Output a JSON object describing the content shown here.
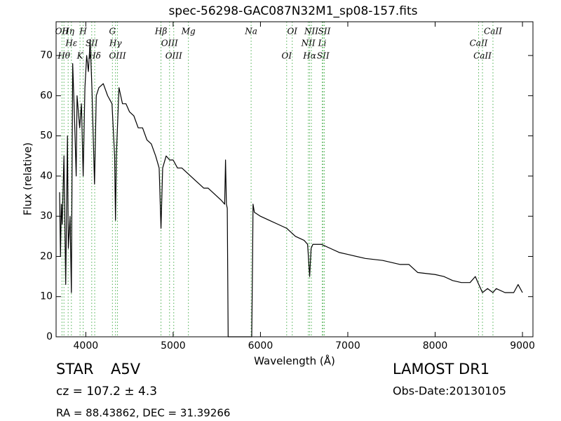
{
  "chart_data": {
    "type": "line",
    "title": "spec-56298-GAC087N32M1_sp08-157.fits",
    "x_label": "Wavelength (Å)",
    "y_label": "Flux (relative)",
    "xlim": [
      3660,
      9120
    ],
    "ylim": [
      0,
      78.4
    ],
    "xticks": [
      4000,
      5000,
      6000,
      7000,
      8000,
      9000
    ],
    "yticks": [
      0,
      10,
      20,
      30,
      40,
      50,
      60,
      70
    ],
    "color": "#000000",
    "line_color": "#4caf50",
    "x": [
      3700,
      3710,
      3720,
      3730,
      3750,
      3770,
      3790,
      3800,
      3820,
      3835,
      3850,
      3870,
      3890,
      3900,
      3930,
      3950,
      3970,
      3990,
      4010,
      4030,
      4050,
      4070,
      4100,
      4120,
      4150,
      4200,
      4250,
      4300,
      4330,
      4340,
      4350,
      4380,
      4420,
      4460,
      4500,
      4550,
      4600,
      4650,
      4700,
      4750,
      4800,
      4840,
      4861,
      4880,
      4920,
      4960,
      5000,
      5050,
      5100,
      5150,
      5200,
      5250,
      5300,
      5350,
      5400,
      5450,
      5500,
      5550,
      5590,
      5600,
      5610,
      5620,
      5630,
      5900,
      5910,
      5915,
      5930,
      6000,
      6100,
      6200,
      6300,
      6400,
      6500,
      6540,
      6563,
      6580,
      6600,
      6700,
      6800,
      6900,
      7000,
      7200,
      7400,
      7600,
      7700,
      7800,
      8000,
      8100,
      8200,
      8300,
      8400,
      8460,
      8500,
      8542,
      8600,
      8662,
      8700,
      8800,
      8900,
      8950,
      9000
    ],
    "values": [
      36,
      20,
      33,
      28,
      45,
      13,
      50,
      22,
      30,
      11,
      68,
      55,
      40,
      60,
      52,
      58,
      40,
      62,
      70,
      66,
      74,
      62,
      38,
      60,
      62,
      63,
      60,
      58,
      45,
      29,
      45,
      62,
      58,
      58,
      56,
      55,
      52,
      52,
      49,
      48,
      45,
      42,
      27,
      42,
      45,
      44,
      44,
      42,
      42,
      41,
      40,
      39,
      38,
      37,
      37,
      36,
      35,
      34,
      33,
      44,
      33,
      32,
      0,
      0,
      20,
      33,
      31,
      30,
      29,
      28,
      27,
      25,
      24,
      23,
      15,
      22,
      23,
      23,
      22,
      21,
      20.5,
      19.5,
      19,
      18,
      18,
      16,
      15.5,
      15,
      14,
      13.5,
      13.5,
      15,
      13,
      11,
      12,
      11,
      12,
      11,
      11,
      13,
      11
    ],
    "lines": [
      {
        "x": 3727,
        "label": "OII"
      },
      {
        "x": 3750,
        "label": "Hθ"
      },
      {
        "x": 3798,
        "label": "Hη"
      },
      {
        "x": 3835,
        "label": "Hε"
      },
      {
        "x": 3934,
        "label": "K"
      },
      {
        "x": 3970,
        "label": "H"
      },
      {
        "x": 4068,
        "label": "SII"
      },
      {
        "x": 4102,
        "label": "Hδ"
      },
      {
        "x": 4305,
        "label": "G"
      },
      {
        "x": 4340,
        "label": "Hγ"
      },
      {
        "x": 4363,
        "label": "OIII"
      },
      {
        "x": 4861,
        "label": "Hβ"
      },
      {
        "x": 4959,
        "label": "OIII"
      },
      {
        "x": 5007,
        "label": "OIII"
      },
      {
        "x": 5175,
        "label": "Mg"
      },
      {
        "x": 5893,
        "label": "Na"
      },
      {
        "x": 6300,
        "label": "OI"
      },
      {
        "x": 6364,
        "label": "OI"
      },
      {
        "x": 6548,
        "label": "NII"
      },
      {
        "x": 6563,
        "label": "Hα"
      },
      {
        "x": 6583,
        "label": "NII"
      },
      {
        "x": 6707,
        "label": "Li"
      },
      {
        "x": 6717,
        "label": "SII"
      },
      {
        "x": 6731,
        "label": "SII"
      },
      {
        "x": 8498,
        "label": "CaII"
      },
      {
        "x": 8542,
        "label": "CaII"
      },
      {
        "x": 8662,
        "label": "CaII"
      }
    ],
    "class": "STAR",
    "subclass": "A5V",
    "cz": "cz = 107.2 ± 4.3",
    "coords": "RA = 88.43862, DEC = 31.39266",
    "survey": "LAMOST DR1",
    "obs_date": "Obs-Date:20130105"
  }
}
